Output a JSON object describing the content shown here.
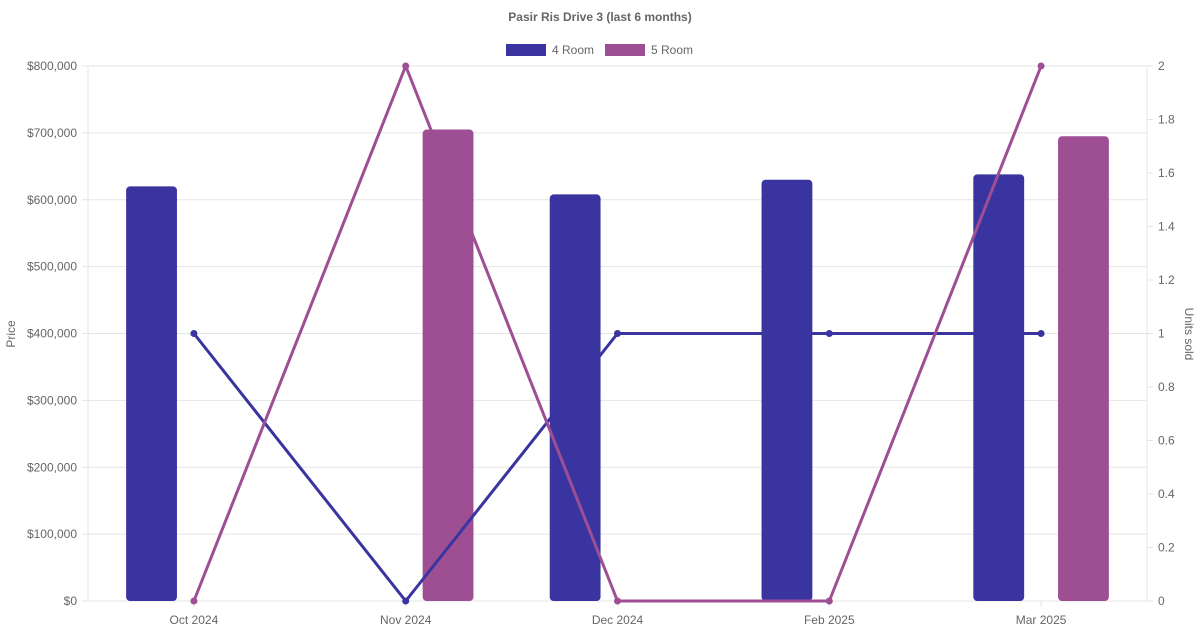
{
  "chart_data": {
    "type": "bar",
    "title": "Pasir Ris Drive 3 (last 6 months)",
    "categories": [
      "Oct 2024",
      "Nov 2024",
      "Dec 2024",
      "Feb 2025",
      "Mar 2025"
    ],
    "y_left": {
      "label": "Price",
      "min": 0,
      "max": 800000,
      "step": 100000,
      "ticks": [
        "$0",
        "$100,000",
        "$200,000",
        "$300,000",
        "$400,000",
        "$500,000",
        "$600,000",
        "$700,000",
        "$800,000"
      ]
    },
    "y_right": {
      "label": "Units sold",
      "min": 0,
      "max": 2,
      "step": 0.2,
      "ticks": [
        "0",
        "0.2",
        "0.4",
        "0.6",
        "0.8",
        "1",
        "1.2",
        "1.4",
        "1.6",
        "1.8",
        "2"
      ]
    },
    "legend_position": "top-center",
    "grid": true,
    "series": [
      {
        "name": "4 Room",
        "color": "#3a34a0",
        "bar_values": [
          620000,
          null,
          608000,
          630000,
          638000
        ],
        "line_values": [
          1,
          0,
          1,
          1,
          1
        ]
      },
      {
        "name": "5 Room",
        "color": "#9e4f93",
        "bar_values": [
          null,
          705000,
          null,
          null,
          695000
        ],
        "line_values": [
          0,
          2,
          0,
          0,
          2
        ]
      }
    ]
  }
}
